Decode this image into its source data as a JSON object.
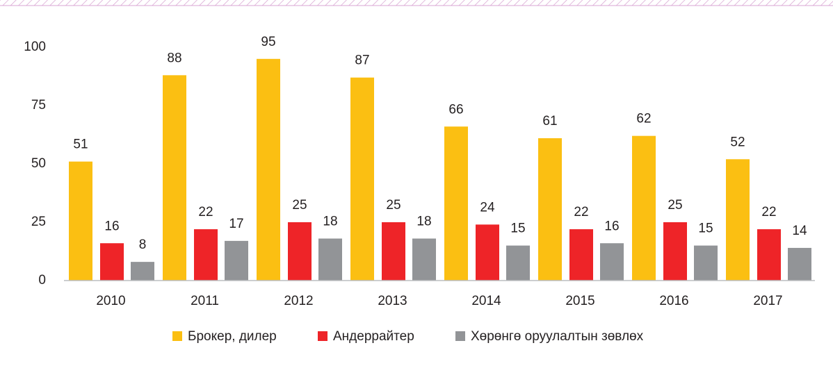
{
  "chart_data": {
    "type": "bar",
    "categories": [
      "2010",
      "2011",
      "2012",
      "2013",
      "2014",
      "2015",
      "2016",
      "2017"
    ],
    "series": [
      {
        "name": "Брокер, дилер",
        "color": "#fbbf12",
        "values": [
          51,
          88,
          95,
          87,
          66,
          61,
          62,
          52
        ]
      },
      {
        "name": "Андеррайтер",
        "color": "#ee2428",
        "values": [
          16,
          22,
          25,
          25,
          24,
          22,
          25,
          22
        ]
      },
      {
        "name": "Хөрөнгө оруулалтын зөвлөх",
        "color": "#929497",
        "values": [
          8,
          17,
          18,
          18,
          15,
          16,
          15,
          14
        ]
      }
    ],
    "ylim": [
      0,
      100
    ],
    "yticks": [
      0,
      25,
      50,
      75,
      100
    ],
    "grid": false,
    "legend": "bottom"
  }
}
